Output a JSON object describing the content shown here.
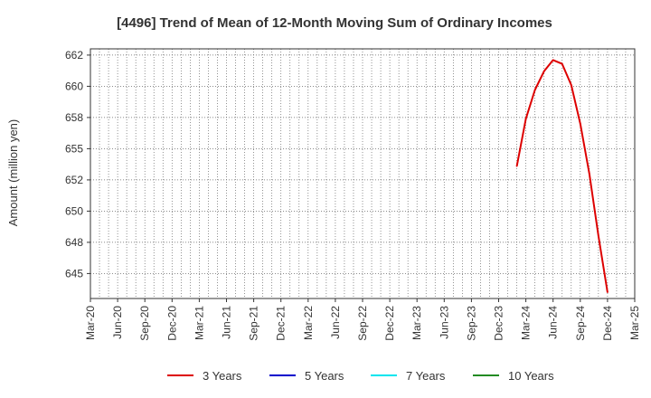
{
  "chart_data": {
    "type": "line",
    "title": "[4496]  Trend of Mean of 12-Month Moving Sum of Ordinary Incomes",
    "ylabel": "Amount (million yen)",
    "xlabel": "",
    "ylim": [
      643.0,
      663.0
    ],
    "y_ticks": [
      {
        "value": 645,
        "label": "645"
      },
      {
        "value": 647.5,
        "label": "648"
      },
      {
        "value": 650,
        "label": "650"
      },
      {
        "value": 652.5,
        "label": "652"
      },
      {
        "value": 655,
        "label": "655"
      },
      {
        "value": 657.5,
        "label": "658"
      },
      {
        "value": 660,
        "label": "660"
      },
      {
        "value": 662.5,
        "label": "662"
      }
    ],
    "x_ticks": [
      "Mar-20",
      "Jun-20",
      "Sep-20",
      "Dec-20",
      "Mar-21",
      "Jun-21",
      "Sep-21",
      "Dec-21",
      "Mar-22",
      "Jun-22",
      "Sep-22",
      "Dec-22",
      "Mar-23",
      "Jun-23",
      "Sep-23",
      "Dec-23",
      "Mar-24",
      "Jun-24",
      "Sep-24",
      "Dec-24",
      "Mar-25"
    ],
    "x_start": "2020-03",
    "x_end": "2025-03",
    "grid": true,
    "legend_position": "bottom",
    "series": [
      {
        "name": "3 Years",
        "color": "#dd0000",
        "points": [
          {
            "x": "2024-02",
            "y": 653.6
          },
          {
            "x": "2024-03",
            "y": 657.4
          },
          {
            "x": "2024-04",
            "y": 659.7
          },
          {
            "x": "2024-05",
            "y": 661.2
          },
          {
            "x": "2024-06",
            "y": 662.1
          },
          {
            "x": "2024-07",
            "y": 661.8
          },
          {
            "x": "2024-08",
            "y": 660.1
          },
          {
            "x": "2024-09",
            "y": 657.0
          },
          {
            "x": "2024-10",
            "y": 653.0
          },
          {
            "x": "2024-11",
            "y": 648.0
          },
          {
            "x": "2024-12",
            "y": 643.5
          }
        ]
      },
      {
        "name": "5 Years",
        "color": "#0000cc",
        "points": []
      },
      {
        "name": "7 Years",
        "color": "#00e5ee",
        "points": []
      },
      {
        "name": "10 Years",
        "color": "#228b22",
        "points": []
      }
    ]
  }
}
